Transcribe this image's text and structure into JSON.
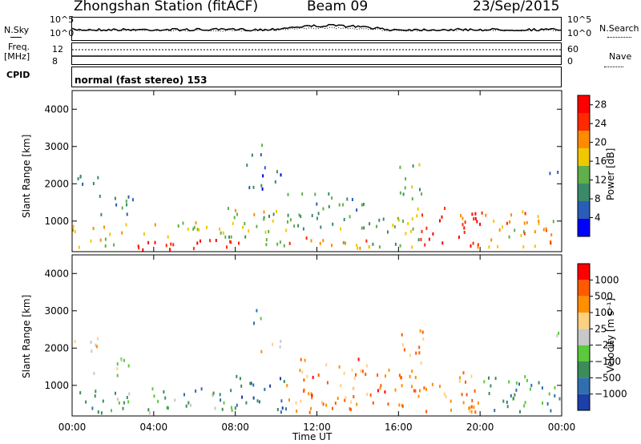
{
  "header": {
    "station": "Zhongshan Station (fitACF)",
    "beam": "Beam 09",
    "date": "23/Sep/2015"
  },
  "param_panels": {
    "nsky_label": "N.Sky",
    "nsearch_label": "N.Search",
    "freq_label_1": "Freq.",
    "freq_label_2": "[MHz]",
    "nave_label": "Nave",
    "cpid_label": "CPID",
    "noise_ticks_left": [
      "10^5",
      "10^0"
    ],
    "noise_ticks_right": [
      "10^5",
      "10^0"
    ],
    "freq_ticks": [
      "12",
      "8"
    ],
    "nave_ticks": [
      "60",
      "0"
    ],
    "cpid_text": "normal (fast stereo) 153"
  },
  "chart_data": [
    {
      "type": "heatmap",
      "parameter": "power",
      "ylabel": "Slant Range [km]",
      "xlabel": "Time UT",
      "x_ticks": [
        "00:00",
        "04:00",
        "08:00",
        "12:00",
        "16:00",
        "20:00",
        "00:00"
      ],
      "y_ticks": [
        "1000",
        "2000",
        "3000",
        "4000"
      ],
      "ylim": [
        180,
        4500
      ],
      "xlim_hours": [
        0,
        24
      ],
      "colorbar": {
        "label": "Power [dB]",
        "ticks": [
          "4",
          "8",
          "12",
          "16",
          "20",
          "24",
          "28"
        ],
        "range": [
          0,
          30
        ],
        "colors": [
          "#0000ff",
          "#2a5db8",
          "#3a8a6a",
          "#5fb04a",
          "#f0c800",
          "#ff8c00",
          "#ff2a00",
          "#ff0000"
        ]
      },
      "regions": [
        {
          "t0": 0.0,
          "t1": 2.5,
          "r0": 300,
          "r1": 900,
          "level": 0.65
        },
        {
          "t0": 0.0,
          "t1": 1.5,
          "r0": 1800,
          "r1": 2300,
          "level": 0.2
        },
        {
          "t0": 1.0,
          "t1": 3.0,
          "r0": 1200,
          "r1": 1800,
          "level": 0.25
        },
        {
          "t0": 2.5,
          "t1": 8.5,
          "r0": 250,
          "r1": 600,
          "level": 0.95
        },
        {
          "t0": 2.5,
          "t1": 7.5,
          "r0": 600,
          "r1": 1000,
          "level": 0.55
        },
        {
          "t0": 7.5,
          "t1": 10.5,
          "r0": 300,
          "r1": 1400,
          "level": 0.5
        },
        {
          "t0": 8.5,
          "t1": 10.2,
          "r0": 1900,
          "r1": 2600,
          "level": 0.18
        },
        {
          "t0": 8.7,
          "t1": 9.5,
          "r0": 2700,
          "r1": 3200,
          "level": 0.3
        },
        {
          "t0": 10.5,
          "t1": 14.5,
          "r0": 250,
          "r1": 600,
          "level": 0.65
        },
        {
          "t0": 10.5,
          "t1": 14.5,
          "r0": 800,
          "r1": 1800,
          "level": 0.35
        },
        {
          "t0": 14.5,
          "t1": 17.0,
          "r0": 300,
          "r1": 1500,
          "level": 0.5
        },
        {
          "t0": 16.0,
          "t1": 17.2,
          "r0": 1500,
          "r1": 2600,
          "level": 0.45
        },
        {
          "t0": 17.0,
          "t1": 20.0,
          "r0": 300,
          "r1": 1400,
          "level": 0.9
        },
        {
          "t0": 20.0,
          "t1": 24.0,
          "r0": 300,
          "r1": 1300,
          "level": 0.65
        },
        {
          "t0": 23.3,
          "t1": 24.0,
          "r0": 2200,
          "r1": 2500,
          "level": 0.15
        }
      ]
    },
    {
      "type": "heatmap",
      "parameter": "velocity",
      "ylabel": "Slant Range [km]",
      "xlabel": "Time UT",
      "x_ticks": [
        "00:00",
        "04:00",
        "08:00",
        "12:00",
        "16:00",
        "20:00",
        "00:00"
      ],
      "y_ticks": [
        "1000",
        "2000",
        "3000",
        "4000"
      ],
      "ylim": [
        180,
        4500
      ],
      "xlim_hours": [
        0,
        24
      ],
      "colorbar": {
        "label": "Velocity [m s⁻¹]",
        "ticks": [
          "1000",
          "500",
          "100",
          "25",
          "−25",
          "−100",
          "−500",
          "−1000"
        ],
        "colors": [
          "#1c3fa8",
          "#2f6fb0",
          "#3b8c5a",
          "#5cc83c",
          "#c8c8c8",
          "#ffd080",
          "#ff9000",
          "#ff5a00",
          "#ff0000"
        ]
      },
      "regions": [
        {
          "t0": 0.0,
          "t1": 2.5,
          "r0": 300,
          "r1": 900,
          "level": 0.3
        },
        {
          "t0": 0.0,
          "t1": 1.5,
          "r0": 1800,
          "r1": 2300,
          "level": 0.55
        },
        {
          "t0": 1.0,
          "t1": 3.0,
          "r0": 1300,
          "r1": 1800,
          "level": 0.5
        },
        {
          "t0": 2.5,
          "t1": 8.0,
          "r0": 300,
          "r1": 1000,
          "level": 0.3
        },
        {
          "t0": 8.0,
          "t1": 10.5,
          "r0": 300,
          "r1": 1300,
          "level": 0.1
        },
        {
          "t0": 9.0,
          "t1": 10.2,
          "r0": 1900,
          "r1": 2300,
          "level": 0.55
        },
        {
          "t0": 8.7,
          "t1": 9.5,
          "r0": 2700,
          "r1": 3200,
          "level": 0.25
        },
        {
          "t0": 10.5,
          "t1": 14.5,
          "r0": 300,
          "r1": 1800,
          "level": 0.78
        },
        {
          "t0": 14.5,
          "t1": 17.0,
          "r0": 300,
          "r1": 1500,
          "level": 0.82
        },
        {
          "t0": 16.0,
          "t1": 17.2,
          "r0": 1500,
          "r1": 2600,
          "level": 0.75
        },
        {
          "t0": 17.0,
          "t1": 20.0,
          "r0": 300,
          "r1": 1400,
          "level": 0.75
        },
        {
          "t0": 20.0,
          "t1": 24.0,
          "r0": 300,
          "r1": 1300,
          "level": 0.25
        },
        {
          "t0": 23.3,
          "t1": 24.0,
          "r0": 2200,
          "r1": 2500,
          "level": 0.4
        }
      ]
    }
  ]
}
